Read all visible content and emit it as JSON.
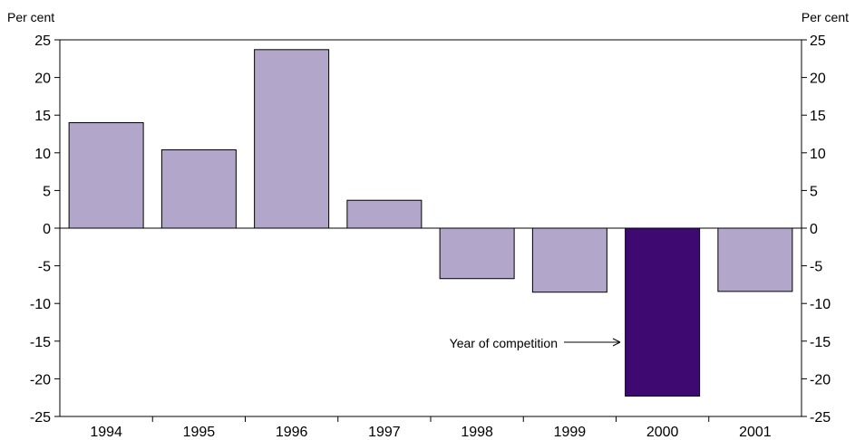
{
  "chart_data": {
    "type": "bar",
    "title": "",
    "xlabel": "",
    "ylabel_left": "Per cent",
    "ylabel_right": "Per cent",
    "categories": [
      "1994",
      "1995",
      "1996",
      "1997",
      "1998",
      "1999",
      "2000",
      "2001"
    ],
    "values": [
      14.0,
      10.4,
      23.7,
      3.7,
      -6.7,
      -8.5,
      -22.3,
      -8.4
    ],
    "ylim": [
      -25,
      25
    ],
    "yticks": [
      "25",
      "20",
      "15",
      "10",
      "5",
      "0",
      "-5",
      "-10",
      "-15",
      "-20",
      "-25"
    ],
    "grid": false,
    "legend": "none",
    "bar_color": "#b2a6cb",
    "highlight_color": "#3e0a72",
    "highlight_category": "2000",
    "annotation": {
      "text": "Year of competition",
      "points_to": "2000"
    }
  }
}
